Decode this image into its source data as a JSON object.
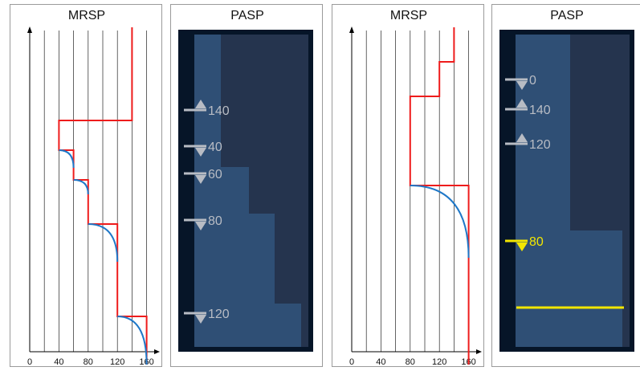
{
  "diagrams": [
    {
      "mrsp": {
        "title": "MRSP",
        "x_ticks": [
          "0",
          "40",
          "80",
          "120",
          "160"
        ],
        "steps": [
          {
            "from": 0,
            "to": 116,
            "limit": 140
          },
          {
            "from": 116,
            "to": 153,
            "limit": 40
          },
          {
            "from": 153,
            "to": 190,
            "limit": 60
          },
          {
            "from": 190,
            "to": 245,
            "limit": 80
          },
          {
            "from": 245,
            "to": 360,
            "limit": 120
          },
          {
            "from": 360,
            "to": 420,
            "limit": 160
          }
        ],
        "brake_curves": [
          {
            "from_speed": 60,
            "to_speed": 40,
            "start": 153,
            "end": 175
          },
          {
            "from_speed": 80,
            "to_speed": 60,
            "start": 190,
            "end": 208
          },
          {
            "from_speed": 120,
            "to_speed": 80,
            "start": 245,
            "end": 292
          },
          {
            "from_speed": 160,
            "to_speed": 120,
            "start": 360,
            "end": 420
          }
        ]
      },
      "pasp": {
        "title": "PASP",
        "markers": [
          {
            "label": "140",
            "dir": "up"
          },
          {
            "label": "40",
            "dir": "down"
          },
          {
            "label": "60",
            "dir": "down"
          },
          {
            "label": "80",
            "dir": "down"
          },
          {
            "label": "120",
            "dir": "down"
          }
        ]
      }
    },
    {
      "mrsp": {
        "title": "MRSP",
        "x_ticks": [
          "0",
          "40",
          "80",
          "120",
          "160"
        ],
        "steps": [
          {
            "from": 0,
            "to": 43,
            "limit": 140
          },
          {
            "from": 43,
            "to": 86,
            "limit": 120
          },
          {
            "from": 86,
            "to": 197,
            "limit": 80
          },
          {
            "from": 197,
            "to": 420,
            "limit": 160
          }
        ],
        "brake_curves": [
          {
            "from_speed": 160,
            "to_speed": 80,
            "start": 197,
            "end": 287
          }
        ]
      },
      "pasp": {
        "title": "PASP",
        "markers": [
          {
            "label": "0",
            "dir": "down",
            "active": false
          },
          {
            "label": "140",
            "dir": "up",
            "active": false
          },
          {
            "label": "120",
            "dir": "up",
            "active": false
          },
          {
            "label": "80",
            "dir": "down",
            "active": true
          }
        ]
      }
    }
  ],
  "colors": {
    "mrsp_line": "#ee1c1c",
    "brake_curve": "#1f78c8",
    "pasp_bg": "#061528",
    "pasp_dark": "#25344e",
    "pasp_light": "#2f4f75",
    "marker": "#b8bcc4",
    "marker_active": "#f2e600"
  }
}
